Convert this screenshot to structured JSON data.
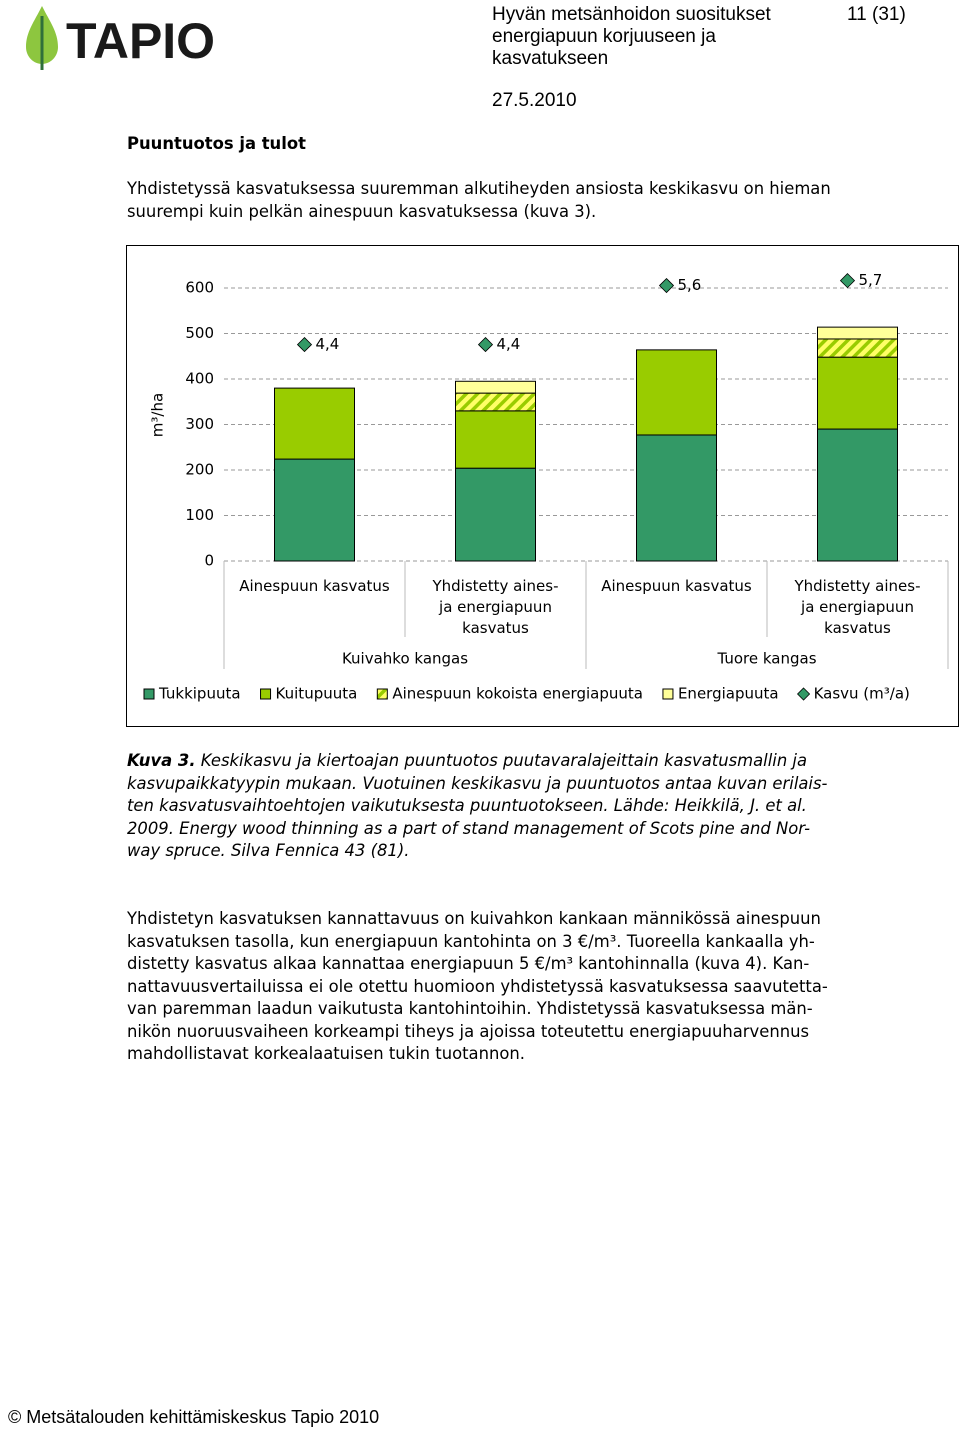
{
  "header": {
    "logo": "TAPIO",
    "title_lines": [
      "Hyvän metsänhoidon suositukset",
      "energiapuun korjuuseen ja",
      "kasvatukseen"
    ],
    "page": "11 (31)",
    "date": "27.5.2010"
  },
  "section": {
    "heading": "Puuntuotos ja tulot",
    "lines": [
      "Yhdistetyssä kasvatuksessa suuremman alkutiheyden ansiosta keskikasvu on hieman",
      "suurempi kuin pelkän ainespuun kasvatuksessa (kuva 3)."
    ]
  },
  "chart_data": {
    "type": "stacked-bar",
    "y_label": "m³/ha",
    "categories": [
      "Ainespuun kasvatus",
      "Yhdistetty aines- ja energiapuun kasvatus",
      "Ainespuun kasvatus",
      "Yhdistetty aines- ja energiapuun kasvatus"
    ],
    "groups": [
      "Kuivahko kangas",
      "Tuore kangas"
    ],
    "series": [
      {
        "name": "Tukkipuuta",
        "color": "#339966",
        "values": [
          224,
          204,
          277,
          290
        ]
      },
      {
        "name": "Kuitupuuta",
        "color": "#99cc00",
        "values": [
          156,
          126,
          187,
          158
        ]
      },
      {
        "name": "Ainespuun kokoista energiapuuta",
        "color": "#ffff66",
        "hatch": "#99cc00",
        "values": [
          null,
          39,
          null,
          40
        ]
      },
      {
        "name": "Energiapuuta",
        "color": "#ffff99",
        "values": [
          null,
          26,
          null,
          26
        ]
      },
      {
        "name": "Kasvu (m³/a)",
        "color": "#339966",
        "marker": "diamond",
        "axis": "y2",
        "values": [
          4.4,
          4.4,
          5.6,
          5.7
        ],
        "value_labels": [
          "4,4",
          "4,4",
          "5,6",
          "5,7"
        ]
      }
    ],
    "ylim": [
      0,
      600
    ],
    "yticks": [
      0,
      100,
      200,
      300,
      400,
      500,
      600
    ],
    "y2lim": [
      0,
      5.55
    ],
    "grid": true
  },
  "caption": {
    "label": "Kuva 3.",
    "lines": [
      " Keskikasvu ja kiertoajan puuntuotos puutavaralajeittain kasvatusmallin ja",
      "kasvupaikkatyypin mukaan. Vuotuinen keskikasvu ja puuntuotos antaa kuvan erilais-",
      "ten kasvatusvaihtoehtojen vaikutuksesta puuntuotokseen. Lähde: Heikkilä, J. et al.",
      "2009. Energy wood thinning as a part of stand management of Scots pine and Nor-",
      "way spruce. Silva Fennica 43 (81)."
    ]
  },
  "paragraph": {
    "lines": [
      "Yhdistetyn kasvatuksen kannattavuus on kuivahkon kankaan männikössä ainespuun",
      "kasvatuksen tasolla, kun energiapuun kantohinta on 3 €/m³. Tuoreella kankaalla yh-",
      "distetty kasvatus alkaa kannattaa energiapuun 5 €/m³ kantohinnalla (kuva 4). Kan-",
      "nattavuusvertailuissa ei ole otettu huomioon yhdistetyssä kasvatuksessa saavutetta-",
      "van paremman laadun vaikutusta kantohintoihin. Yhdistetyssä kasvatuksessa män-",
      "nikön nuoruusvaiheen korkeampi tiheys ja ajoissa toteutettu energiapuuharvennus",
      "mahdollistavat korkealaatuisen tukin tuotannon."
    ]
  },
  "footer": {
    "text": "©  Metsätalouden kehittämiskeskus Tapio 2010"
  }
}
